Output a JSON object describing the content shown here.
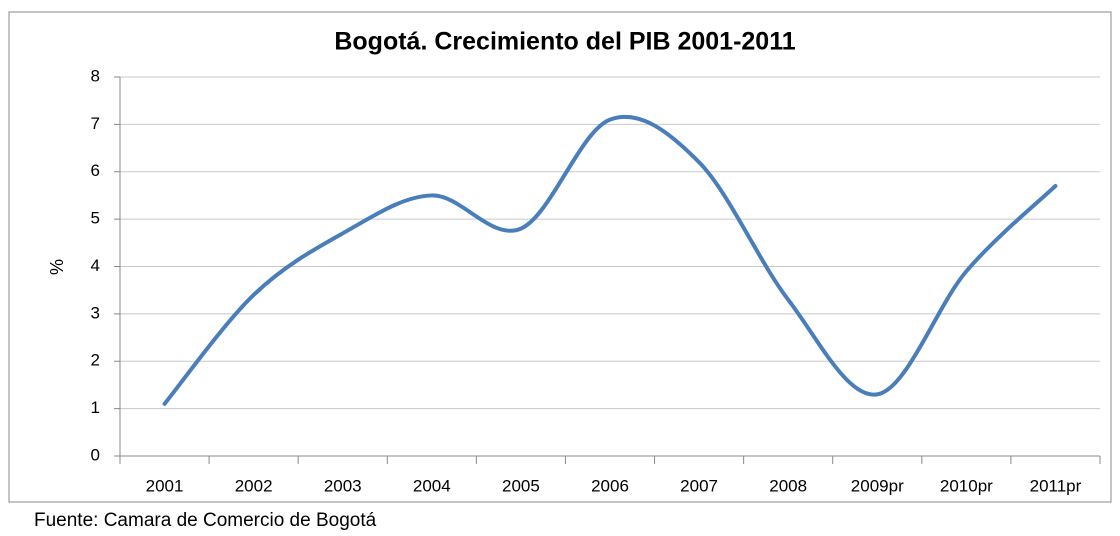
{
  "chart_data": {
    "type": "line",
    "title": "Bogotá. Crecimiento del PIB 2001-2011",
    "y_label": "%",
    "source": "Fuente: Camara de Comercio de Bogotá",
    "categories": [
      "2001",
      "2002",
      "2003",
      "2004",
      "2005",
      "2006",
      "2007",
      "2008",
      "2009pr",
      "2010pr",
      "2011pr"
    ],
    "series": [
      {
        "name": "PIB",
        "color": "#4a7ebb",
        "values": [
          1.1,
          3.4,
          4.7,
          5.5,
          4.8,
          7.1,
          6.2,
          3.3,
          1.3,
          3.9,
          5.7
        ]
      }
    ],
    "ylim": [
      0,
      8
    ],
    "yticks": [
      0,
      1,
      2,
      3,
      4,
      5,
      6,
      7,
      8
    ],
    "grid": true,
    "smooth": true
  }
}
